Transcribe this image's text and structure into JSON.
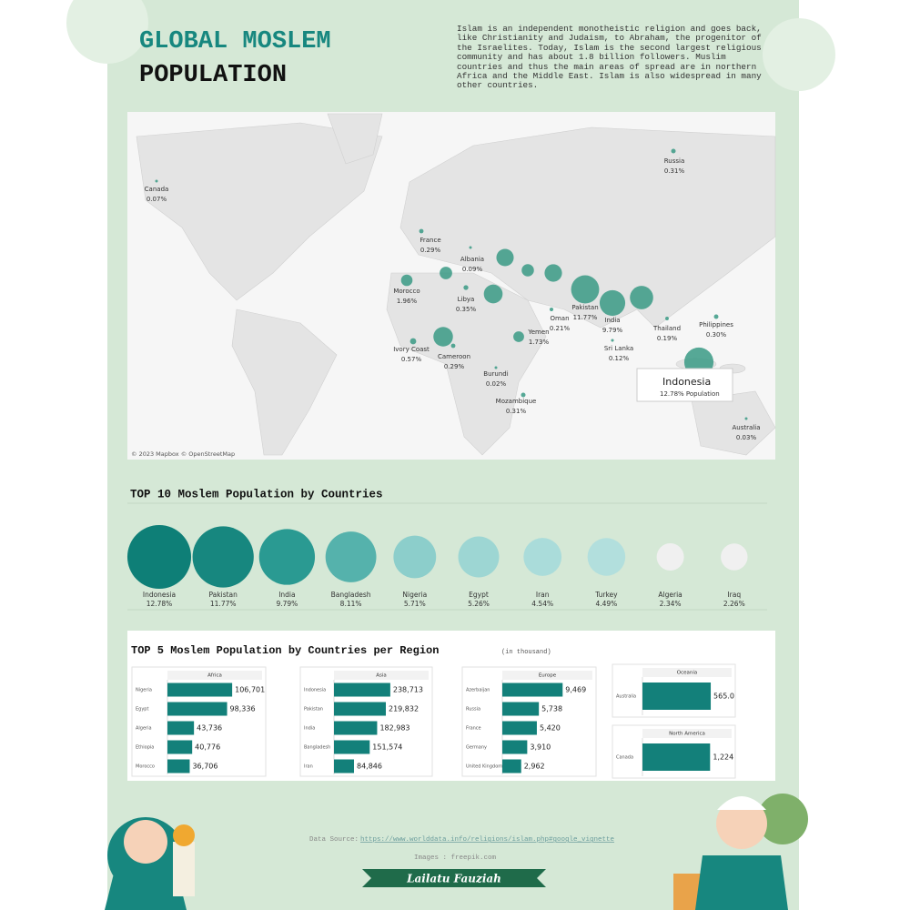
{
  "header": {
    "title_line1": "GLOBAL MOSLEM",
    "title_line2": "POPULATION",
    "description": "Islam is an independent monotheistic religion and goes back, like Christianity and Judaism, to Abraham, the progenitor of the Israelites. Today, Islam is the second largest religious community and has about 1.8 billion followers. Muslim countries and thus the main areas of spread are in northern Africa and the Middle East. Islam is also widespread in many other countries."
  },
  "map": {
    "credit": "© 2023 Mapbox © OpenStreetMap",
    "labels": [
      {
        "name": "Russia",
        "value": 0.31,
        "value_label": "0.31%"
      },
      {
        "name": "Canada",
        "value": 0.07,
        "value_label": "0.07%"
      },
      {
        "name": "France",
        "value": 0.29,
        "value_label": "0.29%"
      },
      {
        "name": "Albania",
        "value": 0.09,
        "value_label": "0.09%"
      },
      {
        "name": "Morocco",
        "value": 1.96,
        "value_label": "1.96%"
      },
      {
        "name": "Libya",
        "value": 0.35,
        "value_label": "0.35%"
      },
      {
        "name": "Pakistan",
        "value": 11.77,
        "value_label": "11.77%"
      },
      {
        "name": "Oman",
        "value": 0.21,
        "value_label": "0.21%"
      },
      {
        "name": "India",
        "value": 9.79,
        "value_label": "9.79%"
      },
      {
        "name": "Yemen",
        "value": 1.73,
        "value_label": "1.73%"
      },
      {
        "name": "Philippines",
        "value": 0.3,
        "value_label": "0.30%"
      },
      {
        "name": "Thailand",
        "value": 0.19,
        "value_label": "0.19%"
      },
      {
        "name": "Ivory Coast",
        "value": 0.57,
        "value_label": "0.57%"
      },
      {
        "name": "Sri Lanka",
        "value": 0.12,
        "value_label": "0.12%"
      },
      {
        "name": "Cameroon",
        "value": 0.29,
        "value_label": "0.29%"
      },
      {
        "name": "Burundi",
        "value": 0.02,
        "value_label": "0.02%"
      },
      {
        "name": "Mozambique",
        "value": 0.31,
        "value_label": "0.31%"
      },
      {
        "name": "Australia",
        "value": 0.03,
        "value_label": "0.03%"
      }
    ],
    "highlight": {
      "name": "Indonesia",
      "value": 12.78,
      "value_label": "12.78% Population"
    }
  },
  "region_section": {
    "title": "TOP 5 Moslem Population by Countries per Region",
    "subtitle": "(in thousand)"
  },
  "chart_data": [
    {
      "type": "bubble",
      "title": "TOP 10 Moslem Population by Countries",
      "categories": [
        "Indonesia",
        "Pakistan",
        "India",
        "Bangladesh",
        "Nigeria",
        "Egypt",
        "Iran",
        "Turkey",
        "Algeria",
        "Iraq"
      ],
      "values": [
        12.78,
        11.77,
        9.79,
        8.11,
        5.71,
        5.26,
        4.54,
        4.49,
        2.34,
        2.26
      ],
      "value_labels": [
        "12.78%",
        "11.77%",
        "9.79%",
        "8.11%",
        "5.71%",
        "5.26%",
        "4.54%",
        "4.49%",
        "2.34%",
        "2.26%"
      ],
      "colors": [
        "#0e7f77",
        "#17877f",
        "#2a9a92",
        "#55b2ac",
        "#8ccecb",
        "#9dd6d3",
        "#aadcda",
        "#b2dfdd",
        "#f0f0f0",
        "#f0f0f0"
      ]
    },
    {
      "type": "bar",
      "title": "Africa",
      "categories": [
        "Nigeria",
        "Egypt",
        "Algeria",
        "Ethiopia",
        "Morocco"
      ],
      "values": [
        106701,
        98336,
        43736,
        40776,
        36706
      ],
      "value_labels": [
        "106,701",
        "98,336",
        "43,736",
        "40,776",
        "36,706"
      ],
      "color": "#13807a",
      "xlim": [
        0,
        120000
      ]
    },
    {
      "type": "bar",
      "title": "Asia",
      "categories": [
        "Indonesia",
        "Pakistan",
        "India",
        "Bangladesh",
        "Iran"
      ],
      "values": [
        238713,
        219832,
        182983,
        151574,
        84846
      ],
      "value_labels": [
        "238,713",
        "219,832",
        "182,983",
        "151,574",
        "84,846"
      ],
      "color": "#13807a",
      "xlim": [
        0,
        270000
      ]
    },
    {
      "type": "bar",
      "title": "Europe",
      "categories": [
        "Azerbaijan",
        "Russia",
        "France",
        "Germany",
        "United Kingdom"
      ],
      "values": [
        9469,
        5738,
        5420,
        3910,
        2962
      ],
      "value_labels": [
        "9,469",
        "5,738",
        "5,420",
        "3,910",
        "2,962"
      ],
      "color": "#13807a",
      "xlim": [
        0,
        10000
      ]
    },
    {
      "type": "bar",
      "title": "Oceania",
      "categories": [
        "Australia"
      ],
      "values": [
        565
      ],
      "value_labels": [
        "565.0"
      ],
      "color": "#13807a",
      "xlim": [
        0,
        640
      ]
    },
    {
      "type": "bar",
      "title": "North America",
      "categories": [
        "Canada"
      ],
      "values": [
        1224
      ],
      "value_labels": [
        "1,224"
      ],
      "color": "#13807a",
      "xlim": [
        0,
        1400
      ]
    }
  ],
  "footer": {
    "source_label": "Data Source:",
    "source_url": "https://www.worlddata.info/religions/islam.php#google_vignette",
    "images": "Images : freepik.com",
    "author": "Lailatu Fauziah"
  }
}
